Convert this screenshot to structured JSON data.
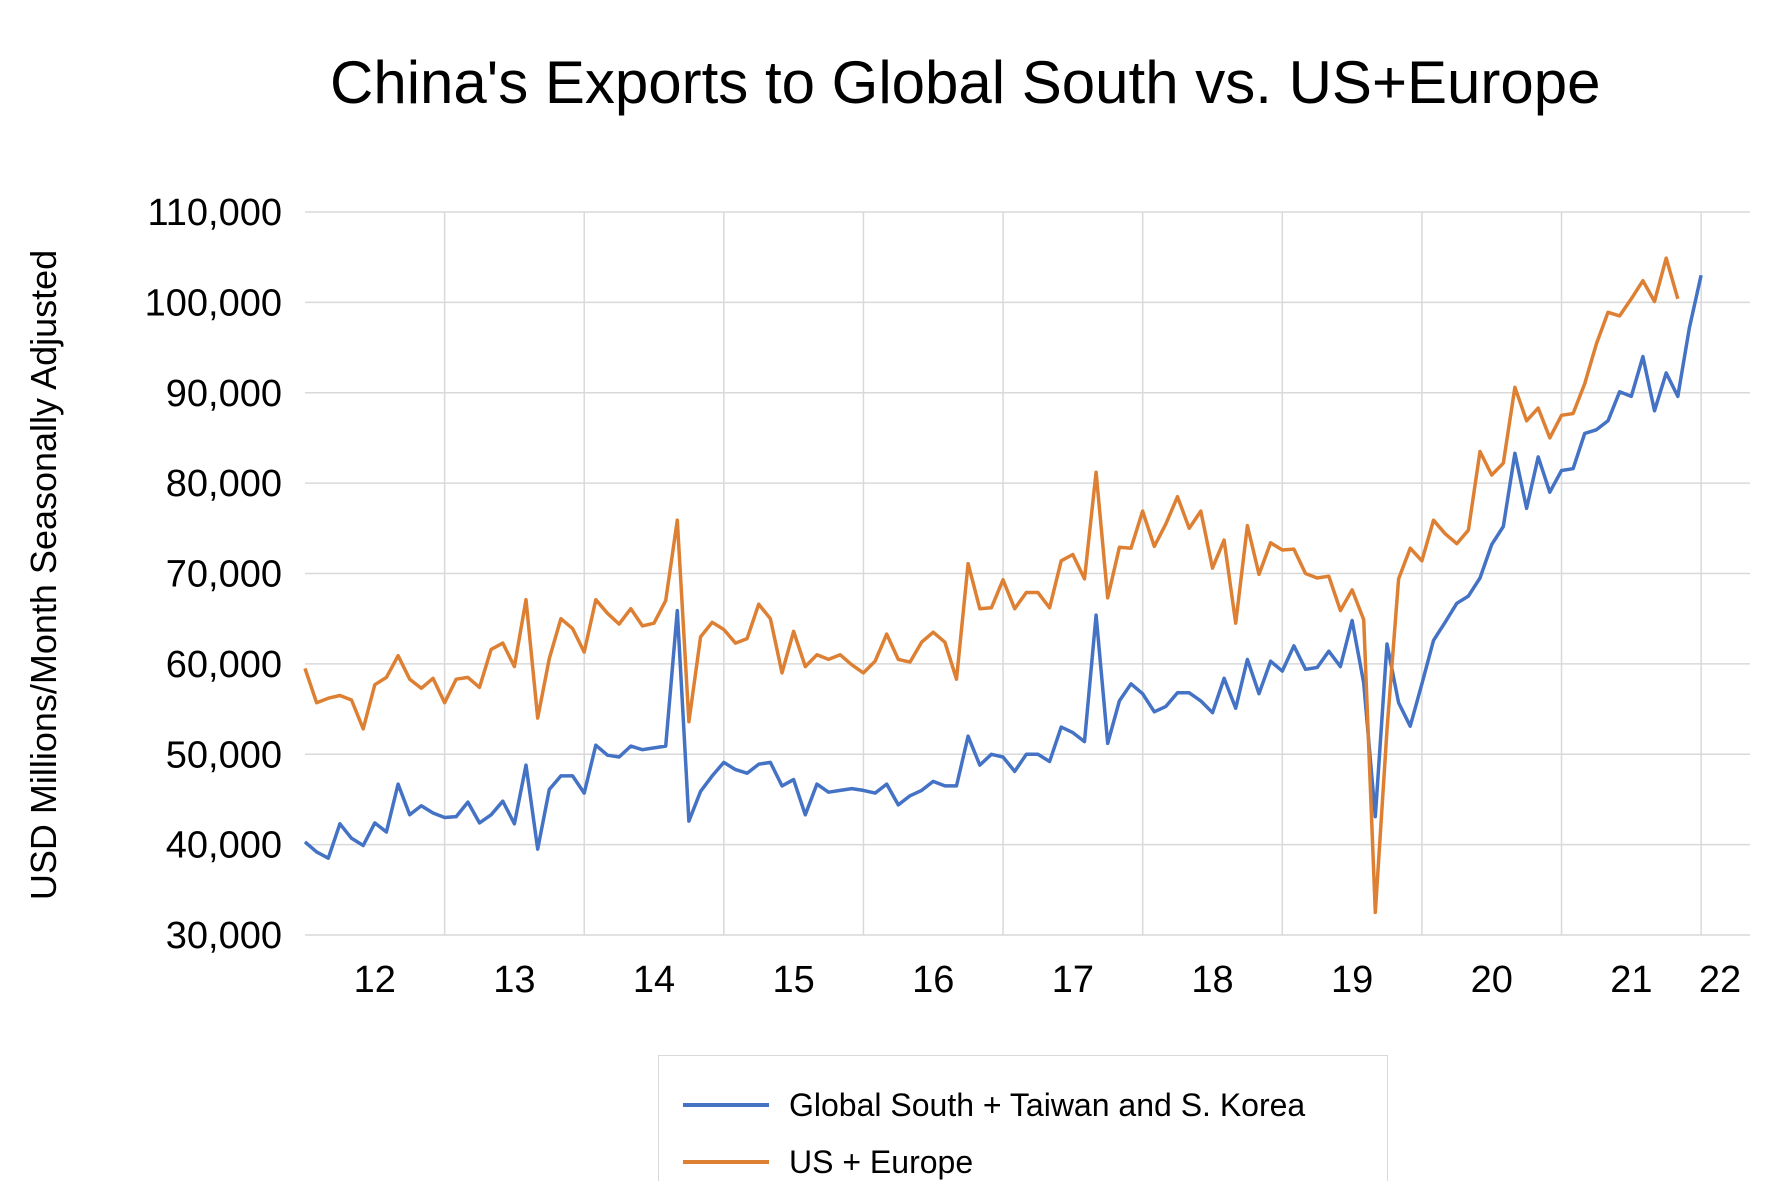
{
  "chart_data": {
    "type": "line",
    "title": "China's Exports to Global South vs. US+Europe",
    "ylabel": "USD Millions/Month Seasonally Adjusted",
    "xlabel": "",
    "ylim": [
      30000,
      110000
    ],
    "yticks": [
      30000,
      40000,
      50000,
      60000,
      70000,
      80000,
      90000,
      100000,
      110000
    ],
    "ytick_labels": [
      "30,000",
      "40,000",
      "50,000",
      "60,000",
      "70,000",
      "80,000",
      "90,000",
      "100,000",
      "110,000"
    ],
    "xlim": [
      2012.0,
      2022.35
    ],
    "xticks": [
      2012.5,
      2013.5,
      2014.5,
      2015.5,
      2016.5,
      2017.5,
      2018.5,
      2019.5,
      2020.5,
      2021.5,
      2022.5
    ],
    "xtick_labels": [
      "12",
      "13",
      "14",
      "15",
      "16",
      "17",
      "18",
      "19",
      "20",
      "21",
      "22"
    ],
    "grid": true,
    "legend_position": "bottom",
    "series": [
      {
        "name": "Global South + Taiwan and S. Korea",
        "color": "#4472c4",
        "x_start": 2012.0,
        "x_step": 0.08333,
        "values": [
          40300,
          39200,
          38500,
          42300,
          40700,
          39900,
          42400,
          41400,
          46700,
          43300,
          44300,
          43500,
          43000,
          43100,
          44700,
          42400,
          43300,
          44800,
          42300,
          48800,
          39500,
          46100,
          47600,
          47600,
          45700,
          51000,
          49900,
          49700,
          50900,
          50500,
          50700,
          50900,
          65900,
          42600,
          45900,
          47600,
          49100,
          48300,
          47900,
          48900,
          49100,
          46500,
          47200,
          43300,
          46700,
          45800,
          46000,
          46200,
          46000,
          45700,
          46700,
          44400,
          45400,
          46000,
          47000,
          46500,
          46500,
          52000,
          48800,
          50000,
          49700,
          48100,
          50000,
          50000,
          49200,
          53000,
          52400,
          51400,
          65400,
          51200,
          55900,
          57800,
          56700,
          54700,
          55300,
          56800,
          56800,
          55900,
          54600,
          58400,
          55100,
          60500,
          56700,
          60300,
          59200,
          62000,
          59400,
          59600,
          61400,
          59700,
          64800,
          57900,
          43100,
          62200,
          55700,
          53100,
          57800,
          62600,
          64600,
          66700,
          67500,
          69500,
          73200,
          75200,
          83300,
          77200,
          82900,
          79000,
          81400,
          81600,
          85500,
          85900,
          86900,
          90100,
          89600,
          94000,
          88000,
          92200,
          89600,
          97200,
          103000
        ]
      },
      {
        "name": "US + Europe",
        "color": "#dd8033",
        "x_start": 2012.0,
        "x_step": 0.08333,
        "values": [
          59500,
          55700,
          56200,
          56500,
          56000,
          52800,
          57700,
          58500,
          60900,
          58300,
          57300,
          58400,
          55700,
          58300,
          58500,
          57400,
          61600,
          62300,
          59700,
          67100,
          54000,
          60600,
          65000,
          63900,
          61300,
          67100,
          65600,
          64400,
          66100,
          64200,
          64500,
          67000,
          75900,
          53600,
          63000,
          64600,
          63800,
          62300,
          62800,
          66600,
          65000,
          59000,
          63600,
          59700,
          61000,
          60500,
          61000,
          59900,
          59000,
          60300,
          63300,
          60500,
          60200,
          62400,
          63500,
          62400,
          58300,
          71100,
          66100,
          66200,
          69300,
          66100,
          67900,
          67900,
          66200,
          71400,
          72100,
          69400,
          81200,
          67300,
          72900,
          72800,
          76900,
          73000,
          75500,
          78500,
          75000,
          76900,
          70600,
          73700,
          64500,
          75300,
          69900,
          73400,
          72600,
          72700,
          70000,
          69500,
          69700,
          65900,
          68200,
          64900,
          32500,
          52700,
          69400,
          72800,
          71400,
          75900,
          74400,
          73300,
          74800,
          83500,
          80900,
          82200,
          90600,
          86900,
          88300,
          85000,
          87500,
          87700,
          91000,
          95400,
          98900,
          98500,
          100400,
          102400,
          100100,
          104900,
          100400
        ]
      }
    ]
  }
}
